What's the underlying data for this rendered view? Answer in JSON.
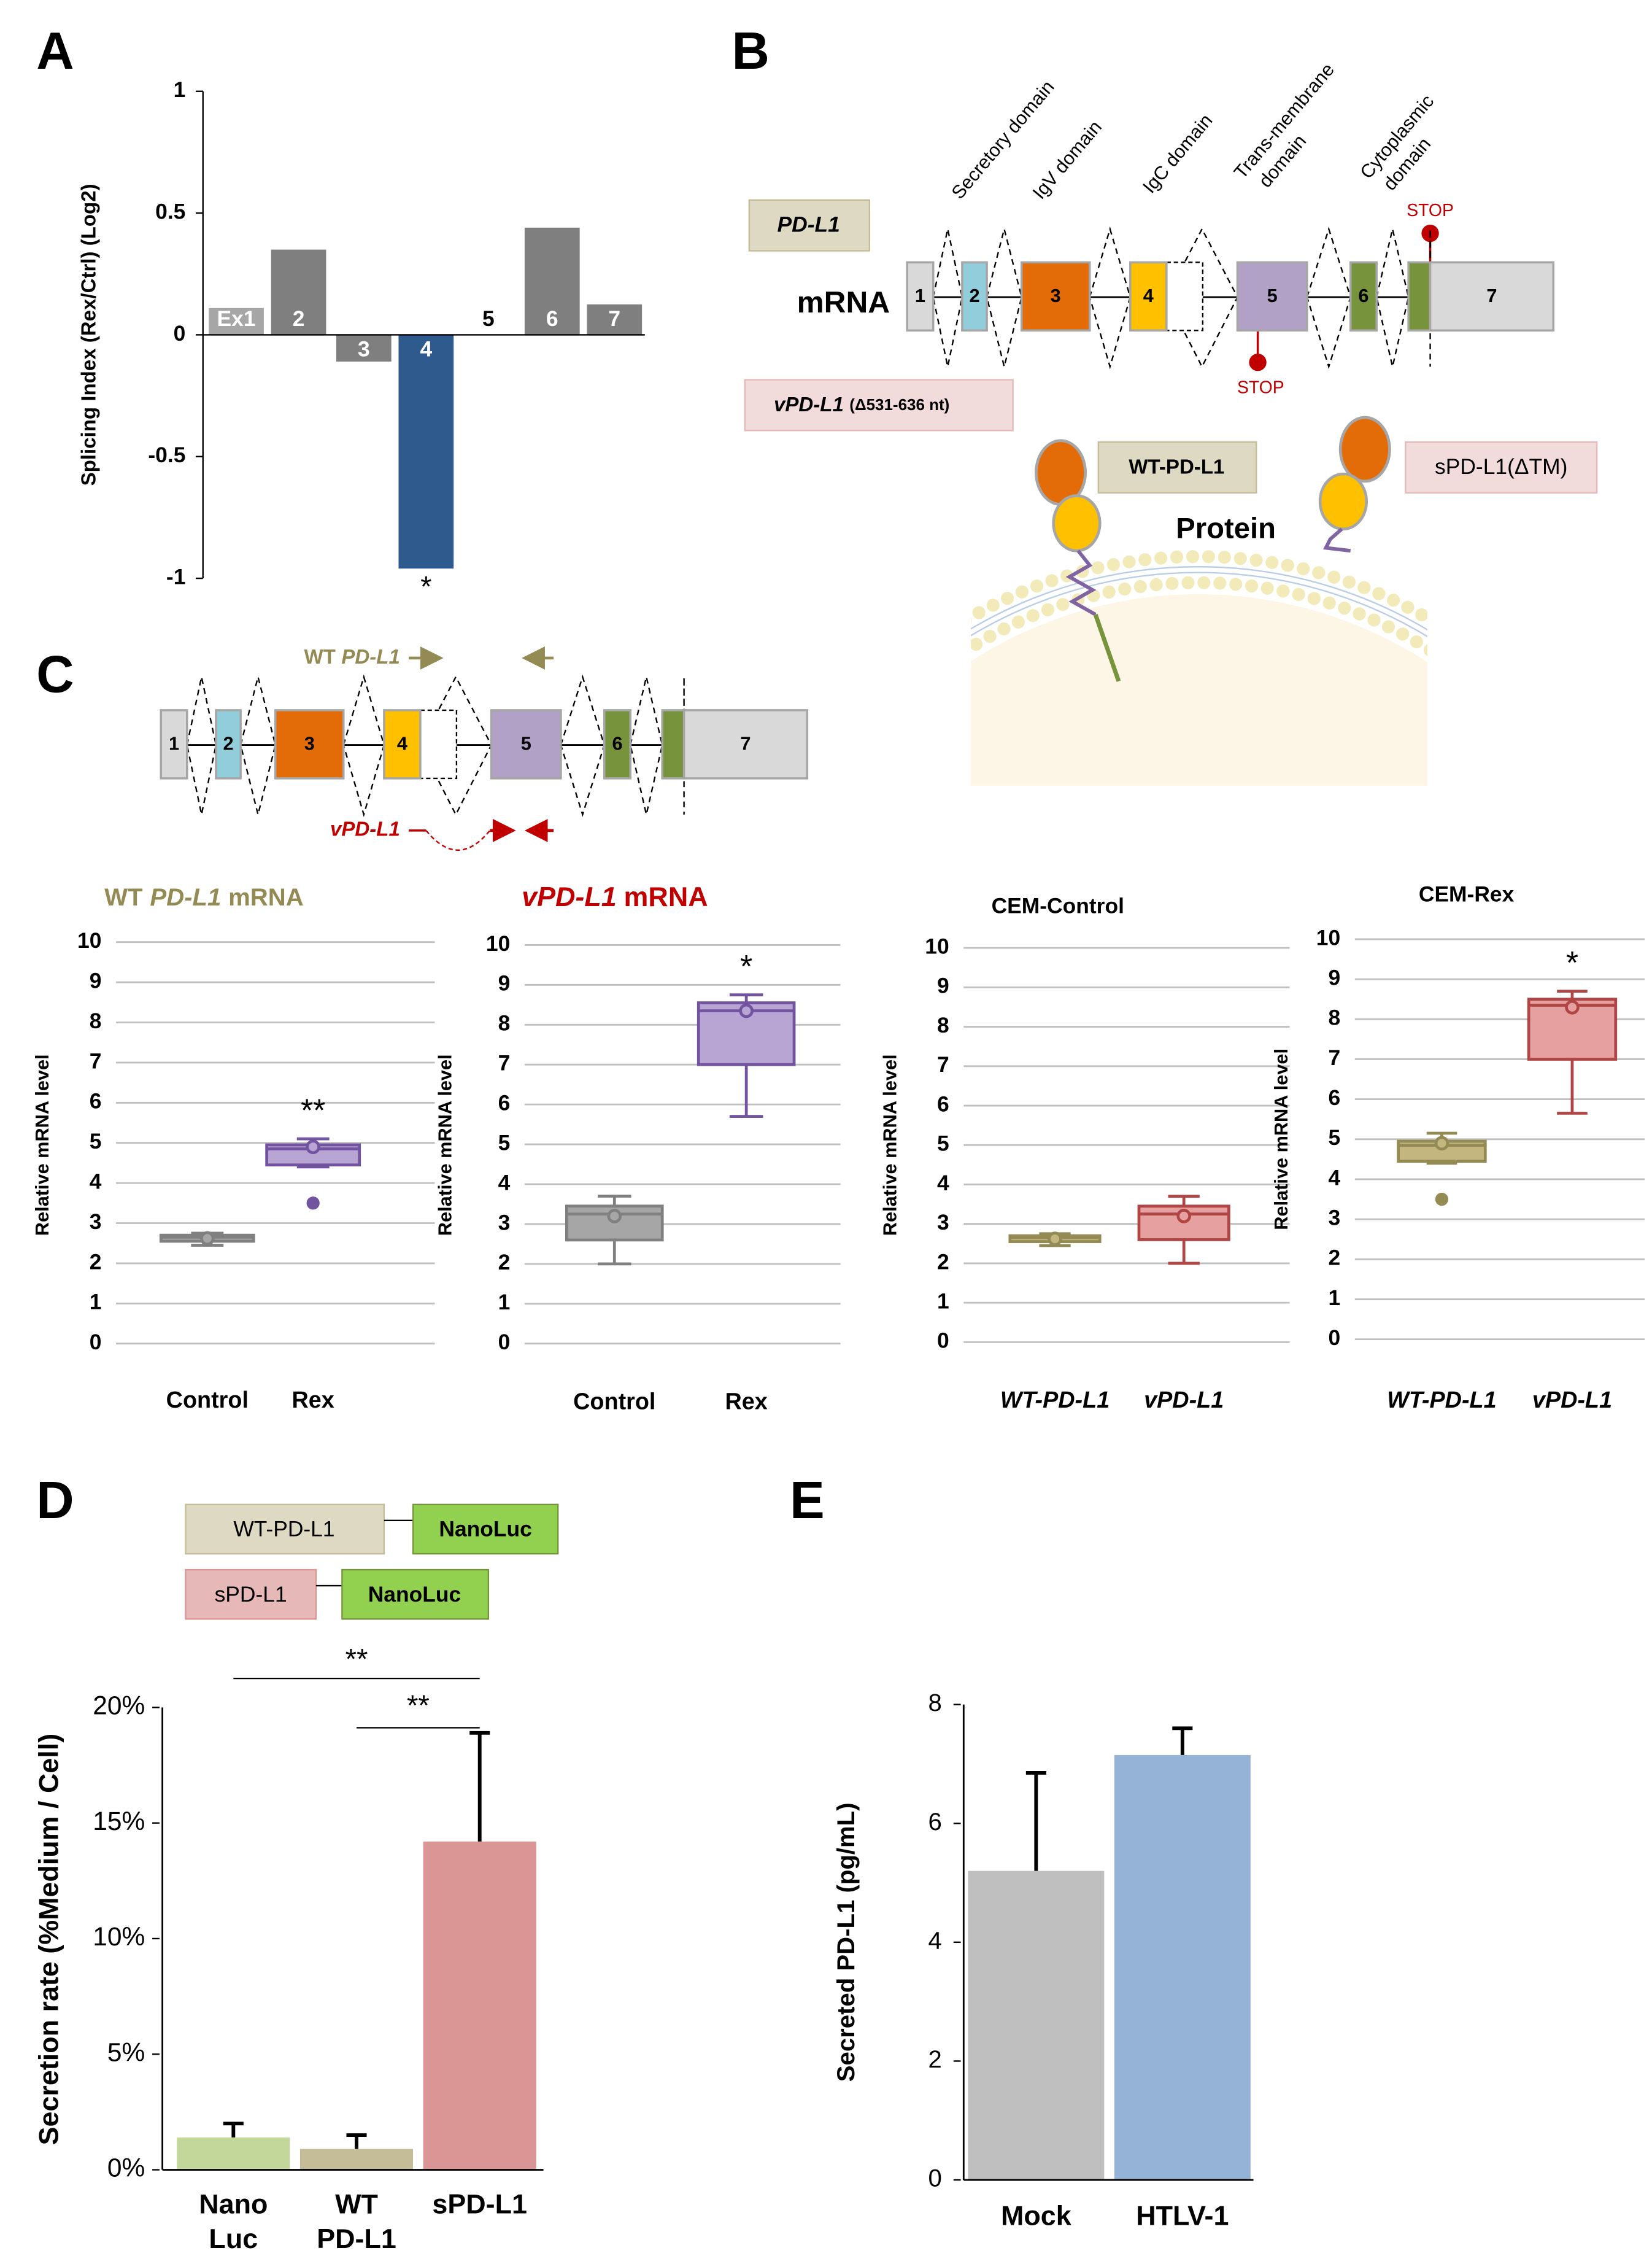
{
  "panel_labels": [
    "A",
    "B",
    "C",
    "D",
    "E"
  ],
  "diagram_b": {
    "domains": [
      [
        "Secretory domain"
      ],
      [
        "IgV domain"
      ],
      [
        "IgC domain"
      ],
      [
        "Trans-membrane",
        "domain"
      ],
      [
        "Cytoplasmic",
        "domain"
      ]
    ],
    "gene_label": "PD-L1",
    "mrna_label": "mRNA",
    "exons": [
      "1",
      "2",
      "3",
      "4",
      "5",
      "6",
      "7"
    ],
    "stop": [
      "STOP",
      "STOP"
    ],
    "variant_label": [
      "vPD-L1",
      "(Δ531-636 nt)"
    ],
    "protein_labels": [
      "WT-PD-L1",
      "sPD-L1(ΔTM)"
    ],
    "protein_title": "Protein"
  },
  "diagram_c": {
    "exons": [
      "1",
      "2",
      "3",
      "4",
      "5",
      "6",
      "7"
    ],
    "primer_wt": [
      "WT",
      "PD-L1"
    ],
    "primer_v": "vPD-L1"
  },
  "diagram_d": {
    "constructs": [
      [
        "WT-PD-L1",
        "NanoLuc"
      ],
      [
        "sPD-L1",
        "NanoLuc"
      ]
    ]
  },
  "chart_data": [
    {
      "type": "bar",
      "ylabel": "Splicing Index (Rex/Ctrl) (Log2)",
      "categories": [
        "Ex1",
        "2",
        "3",
        "4",
        "5",
        "6",
        "7"
      ],
      "values": [
        0.11,
        0.35,
        -0.11,
        -0.96,
        0,
        0.44,
        0.125
      ],
      "colors": [
        "#a6a6a6",
        "#7f7f7f",
        "#7f7f7f",
        "#2e5a8e",
        "#7f7f7f",
        "#7f7f7f",
        "#7f7f7f"
      ],
      "ylim": [
        -1,
        1
      ],
      "yticks": [
        -1,
        -0.5,
        0,
        0.5,
        1
      ],
      "annotations": [
        "*"
      ]
    },
    {
      "type": "box",
      "title": [
        "WT",
        "PD-L1",
        "mRNA"
      ],
      "ylabel": "Relative mRNA level",
      "categories": [
        "Control",
        "Rex"
      ],
      "boxes": [
        {
          "min": 2.45,
          "q1": 2.55,
          "median": 2.65,
          "q3": 2.7,
          "max": 2.75,
          "mean": 2.62,
          "color": "#a6a6a6",
          "stroke": "#808080"
        },
        {
          "min": 4.4,
          "q1": 4.45,
          "median": 4.85,
          "q3": 4.95,
          "max": 5.1,
          "mean": 4.9,
          "outliers": [
            3.5
          ],
          "color": "#b8a5d3",
          "stroke": "#7153a0"
        }
      ],
      "ylim": [
        0,
        10
      ],
      "yticks": [
        0,
        1,
        2,
        3,
        4,
        5,
        6,
        7,
        8,
        9,
        10
      ],
      "grid": true,
      "annotations": [
        "**"
      ]
    },
    {
      "type": "box",
      "title": [
        "vPD-L1",
        "mRNA"
      ],
      "ylabel": "Relative mRNA level",
      "categories": [
        "Control",
        "Rex"
      ],
      "boxes": [
        {
          "min": 2.0,
          "q1": 2.6,
          "median": 3.25,
          "q3": 3.45,
          "max": 3.7,
          "mean": 3.2,
          "color": "#a6a6a6",
          "stroke": "#808080"
        },
        {
          "min": 5.7,
          "q1": 7.0,
          "median": 8.35,
          "q3": 8.55,
          "max": 8.75,
          "mean": 8.35,
          "color": "#b8a5d3",
          "stroke": "#7153a0"
        }
      ],
      "ylim": [
        0,
        10
      ],
      "yticks": [
        0,
        1,
        2,
        3,
        4,
        5,
        6,
        7,
        8,
        9,
        10
      ],
      "grid": true,
      "annotations": [
        "*"
      ]
    },
    {
      "type": "box",
      "title": [
        "CEM-Control"
      ],
      "ylabel": "Relative mRNA level",
      "categories": [
        "WT-PD-L1",
        "vPD-L1"
      ],
      "boxes": [
        {
          "min": 2.45,
          "q1": 2.55,
          "median": 2.65,
          "q3": 2.7,
          "max": 2.75,
          "mean": 2.62,
          "color": "#c4b67f",
          "stroke": "#948a54"
        },
        {
          "min": 2.0,
          "q1": 2.6,
          "median": 3.25,
          "q3": 3.45,
          "max": 3.7,
          "mean": 3.2,
          "color": "#e6a0a0",
          "stroke": "#b04545"
        }
      ],
      "ylim": [
        0,
        10
      ],
      "yticks": [
        0,
        1,
        2,
        3,
        4,
        5,
        6,
        7,
        8,
        9,
        10
      ],
      "grid": true
    },
    {
      "type": "box",
      "title": [
        "CEM-Rex"
      ],
      "ylabel": "Relative mRNA level",
      "categories": [
        "WT-PD-L1",
        "vPD-L1"
      ],
      "boxes": [
        {
          "min": 4.4,
          "q1": 4.45,
          "median": 4.85,
          "q3": 4.95,
          "max": 5.15,
          "mean": 4.9,
          "outliers": [
            3.5
          ],
          "color": "#c4b67f",
          "stroke": "#948a54"
        },
        {
          "min": 5.65,
          "q1": 7.0,
          "median": 8.35,
          "q3": 8.5,
          "max": 8.7,
          "mean": 8.3,
          "color": "#e6a0a0",
          "stroke": "#b04545"
        }
      ],
      "ylim": [
        0,
        10
      ],
      "yticks": [
        0,
        1,
        2,
        3,
        4,
        5,
        6,
        7,
        8,
        9,
        10
      ],
      "grid": true,
      "annotations": [
        "*"
      ]
    },
    {
      "type": "errorbar",
      "ylabel": "Secretion rate (%Medium / Cell)",
      "categories": [
        [
          "Nano",
          "Luc"
        ],
        [
          "WT",
          "PD-L1"
        ],
        [
          "sPD-L1"
        ]
      ],
      "values": [
        1.4,
        0.9,
        14.2
      ],
      "errors": [
        0.6,
        0.6,
        4.7
      ],
      "colors": [
        "#c4d79b",
        "#c4bd97",
        "#d99694"
      ],
      "ylim": [
        0,
        20
      ],
      "yticks": [
        {
          "value": 0,
          "label": "0%"
        },
        {
          "value": 5,
          "label": "5%"
        },
        {
          "value": 10,
          "label": "10%"
        },
        {
          "value": 15,
          "label": "15%"
        },
        {
          "value": 20,
          "label": "20%"
        }
      ],
      "annotations": [
        "**",
        "**"
      ]
    },
    {
      "type": "errorbar",
      "ylabel": "Secreted PD-L1 (pg/mL)",
      "categories": [
        [
          "Mock"
        ],
        [
          "HTLV-1"
        ]
      ],
      "values": [
        5.2,
        7.15
      ],
      "errors": [
        1.65,
        0.45
      ],
      "colors": [
        "#bfbfbf",
        "#95b3d7"
      ],
      "ylim": [
        0,
        8
      ],
      "yticks": [
        0,
        2,
        4,
        6,
        8
      ]
    }
  ]
}
